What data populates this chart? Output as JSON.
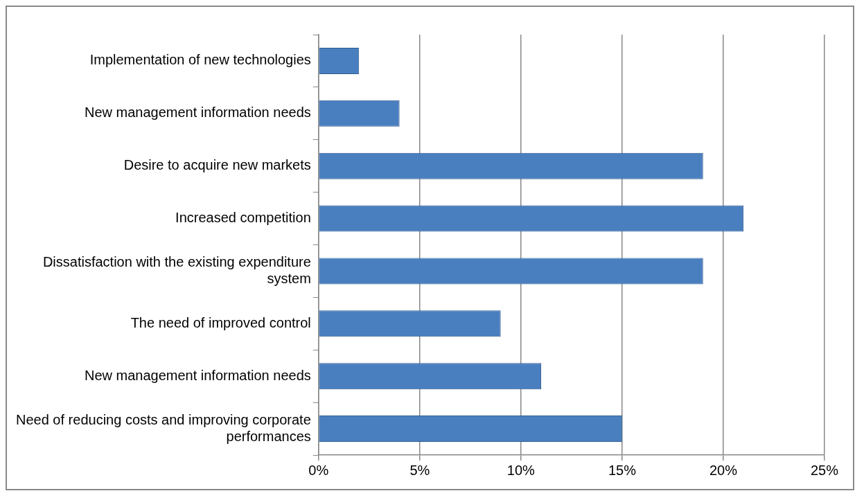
{
  "chart_data": {
    "type": "bar",
    "orientation": "horizontal",
    "categories": [
      "Implementation of new technologies",
      "New management information needs",
      "Desire to acquire new markets",
      "Increased competition",
      "Dissatisfaction with the existing expenditure system",
      "The need of improved control",
      "New management information needs",
      "Need of reducing costs and improving corporate performances"
    ],
    "values": [
      2,
      4,
      19,
      21,
      19,
      9,
      11,
      15
    ],
    "color": "#4a7fbf",
    "xlim": [
      0,
      25
    ],
    "xticks": [
      {
        "value": 0,
        "label": "0%"
      },
      {
        "value": 5,
        "label": "5%"
      },
      {
        "value": 10,
        "label": "10%"
      },
      {
        "value": 15,
        "label": "15%"
      },
      {
        "value": 20,
        "label": "20%"
      },
      {
        "value": 25,
        "label": "25%"
      }
    ],
    "grid": "x",
    "legend": false
  }
}
